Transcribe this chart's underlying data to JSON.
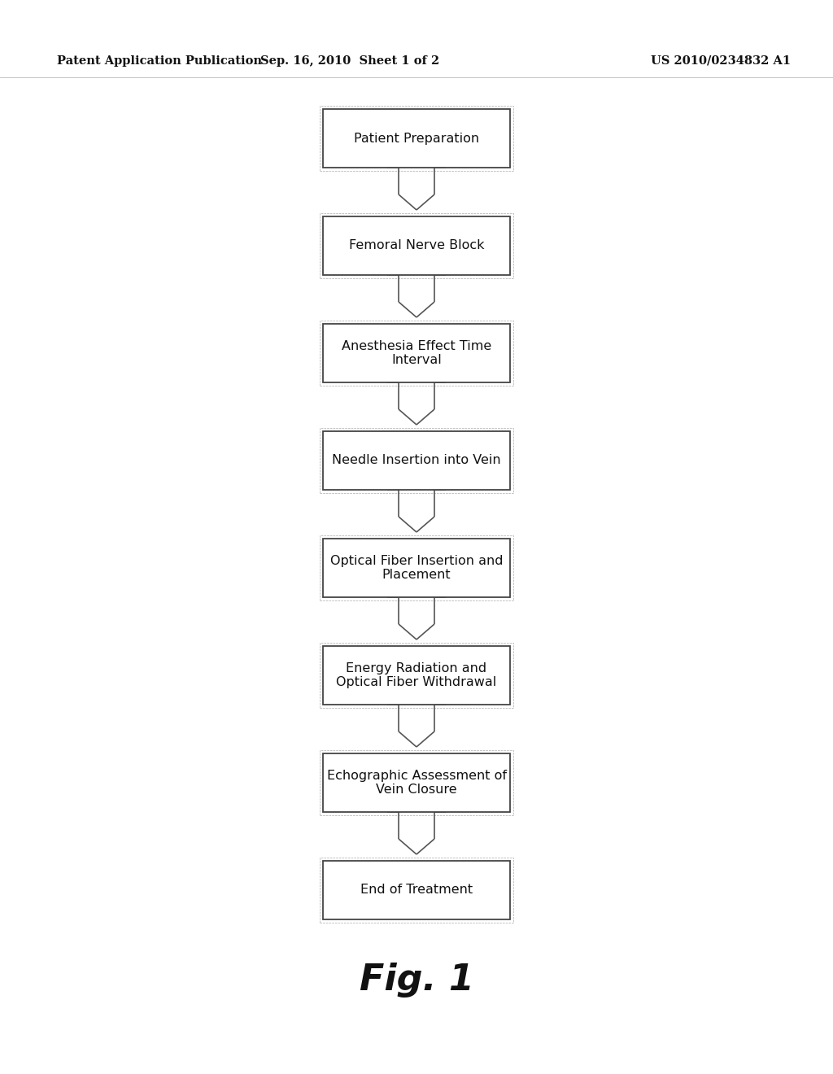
{
  "title_left": "Patent Application Publication",
  "title_center": "Sep. 16, 2010  Sheet 1 of 2",
  "title_right": "US 2010/0234832 A1",
  "fig_label": "Fig. 1",
  "steps": [
    "Patient Preparation",
    "Femoral Nerve Block",
    "Anesthesia Effect Time\nInterval",
    "Needle Insertion into Vein",
    "Optical Fiber Insertion and\nPlacement",
    "Energy Radiation and\nOptical Fiber Withdrawal",
    "Echographic Assessment of\nVein Closure",
    "End of Treatment"
  ],
  "bg_color": "#ffffff",
  "box_edge_color": "#444444",
  "box_fill_color": "#ffffff",
  "text_color": "#111111",
  "arrow_color": "#555555",
  "header_color": "#111111",
  "font_size": 11.5,
  "header_font_size": 10.5
}
